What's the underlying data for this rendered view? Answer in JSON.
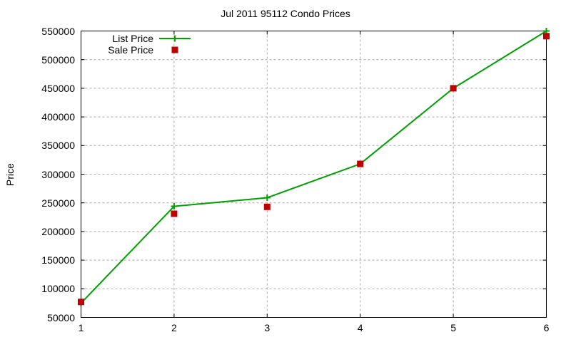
{
  "chart_data": {
    "type": "line",
    "title": "Jul 2011 95112 Condo Prices",
    "xlabel": "",
    "ylabel": "Price",
    "x": [
      1,
      2,
      3,
      4,
      5,
      6
    ],
    "series": [
      {
        "name": "List Price",
        "style": "line-with-plus-markers",
        "color": "#00a000",
        "values": [
          75000,
          244000,
          259000,
          318000,
          450000,
          550000
        ]
      },
      {
        "name": "Sale Price",
        "style": "square-points",
        "color": "#c00000",
        "values": [
          77000,
          231000,
          243000,
          318000,
          450000,
          541000
        ]
      }
    ],
    "xlim": [
      1,
      6
    ],
    "ylim": [
      50000,
      550000
    ],
    "xticks": [
      1,
      2,
      3,
      4,
      5,
      6
    ],
    "yticks": [
      50000,
      100000,
      150000,
      200000,
      250000,
      300000,
      350000,
      400000,
      450000,
      500000,
      550000
    ],
    "grid": true,
    "grid_color": "#a8a8a8",
    "border_color": "#000000",
    "text_color": "#000000",
    "background": "#ffffff",
    "legend_position": "top-left-inside"
  }
}
